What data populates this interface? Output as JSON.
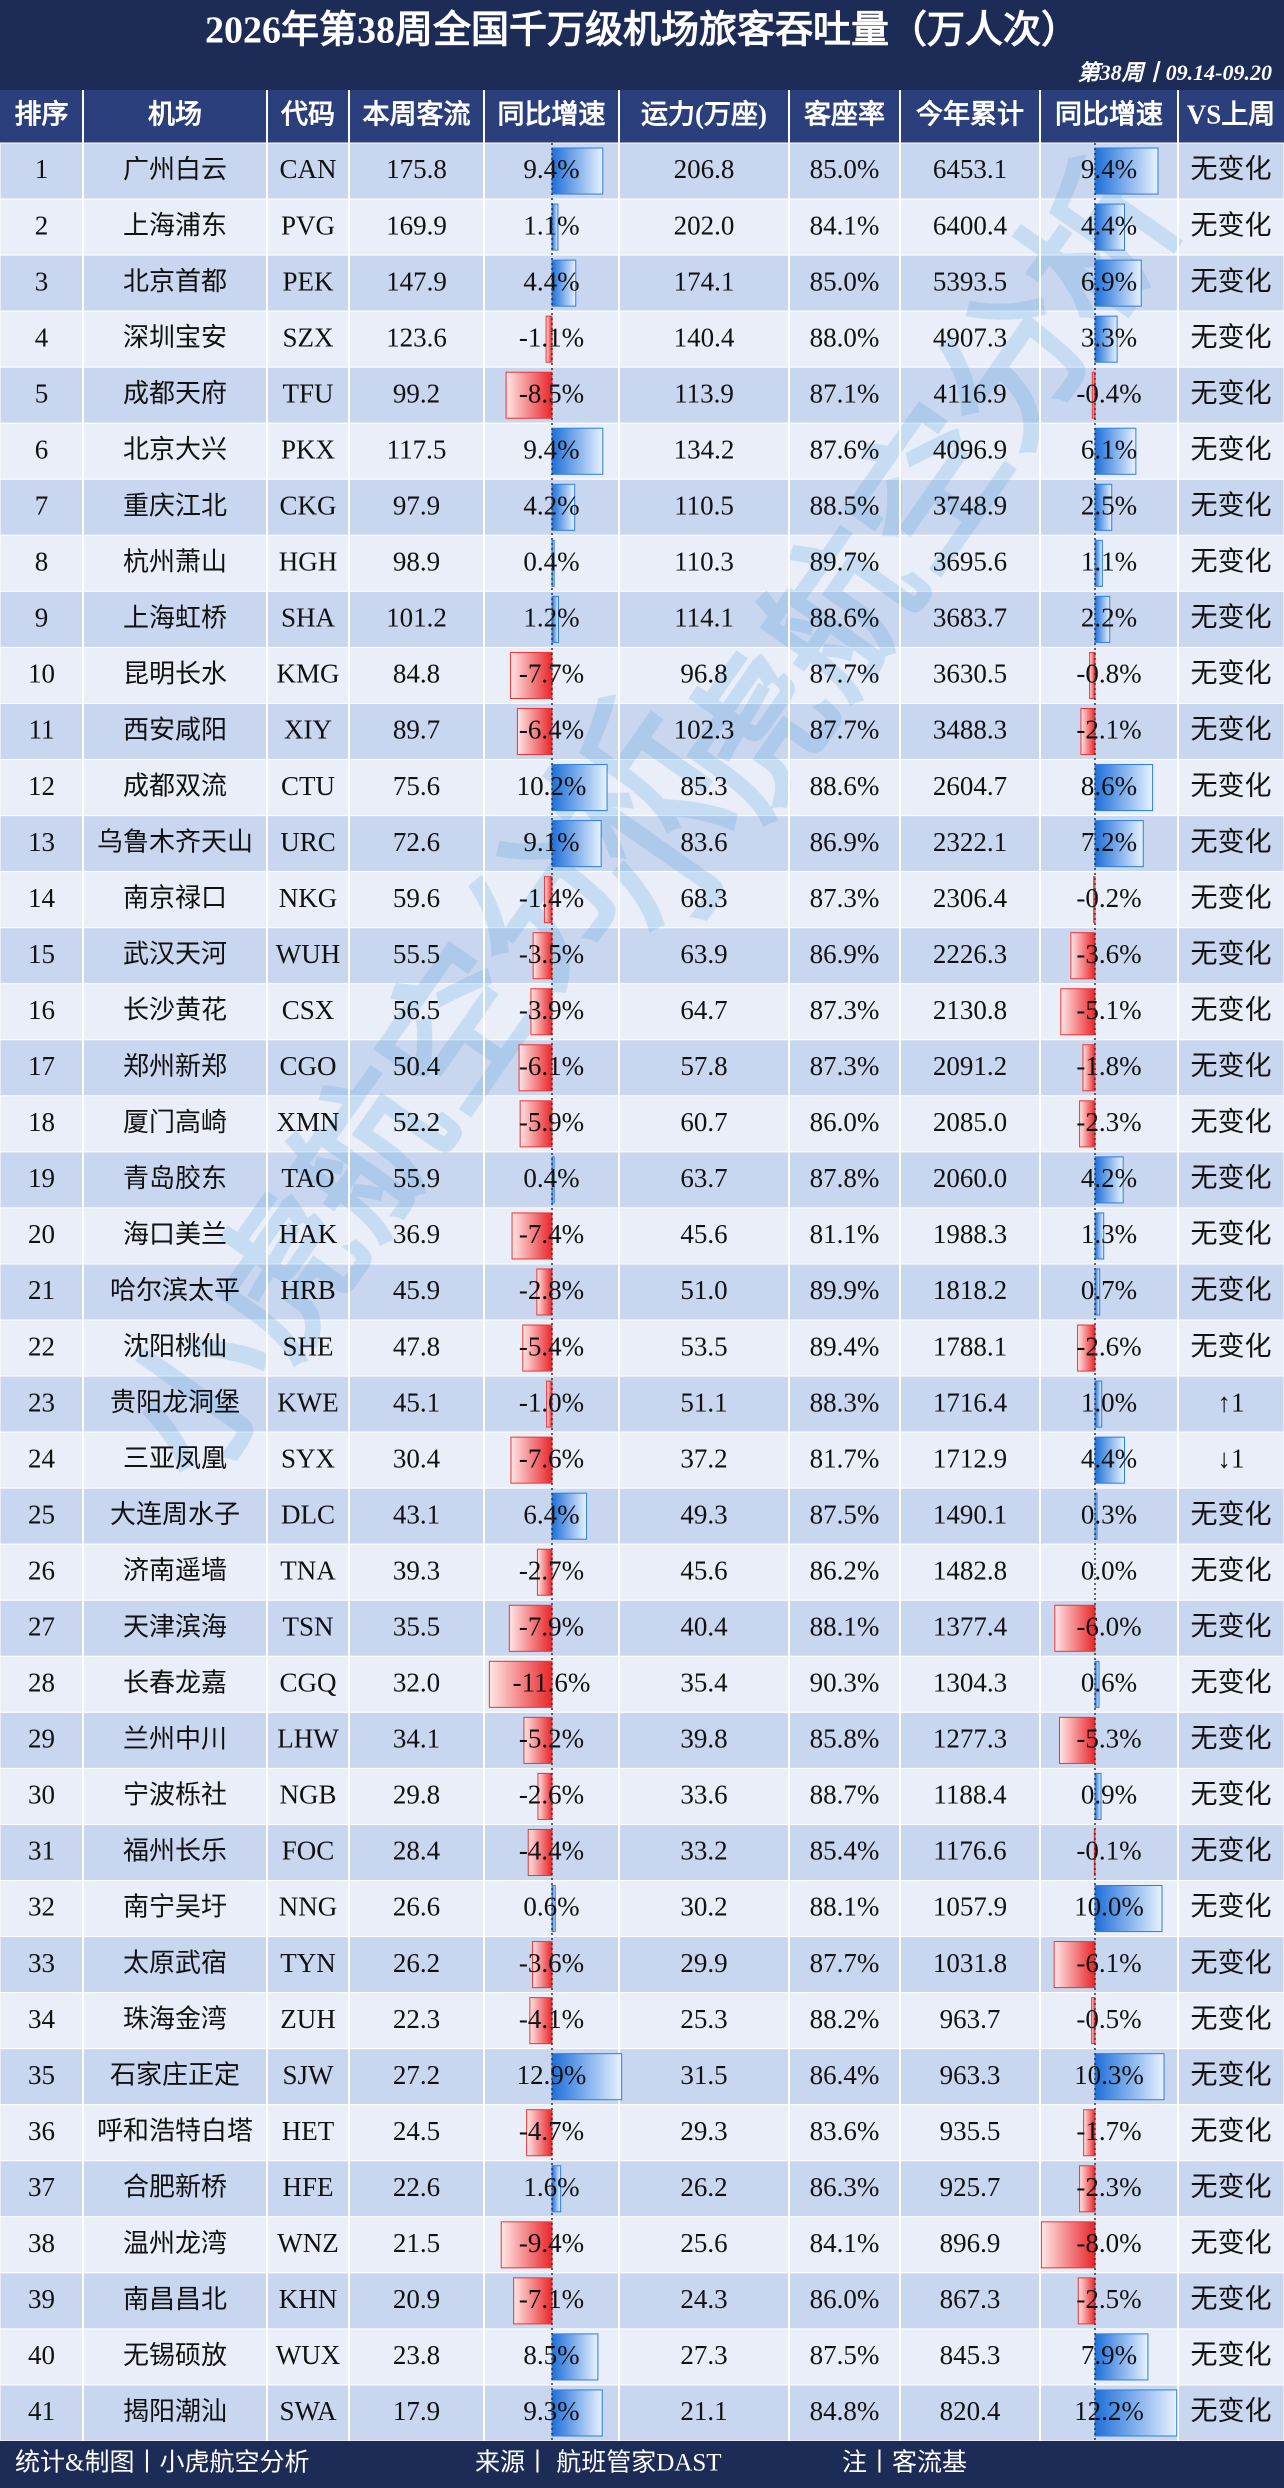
{
  "header": {
    "title": "2026年第38周全国千万级机场旅客吞吐量（万人次）",
    "period": "第38周丨09.14-09.20",
    "watermark": "小虎航空分析"
  },
  "table": {
    "columns": [
      "排序",
      "机场",
      "代码",
      "本周客流",
      "同比增速",
      "运力(万座)",
      "客座率",
      "今年累计",
      "同比增速",
      "VS上周"
    ],
    "rows": [
      [
        "1",
        "广州白云",
        "CAN",
        "175.8",
        "9.4%",
        "206.8",
        "85.0%",
        "6453.1",
        "9.4%",
        "无变化"
      ],
      [
        "2",
        "上海浦东",
        "PVG",
        "169.9",
        "1.1%",
        "202.0",
        "84.1%",
        "6400.4",
        "4.4%",
        "无变化"
      ],
      [
        "3",
        "北京首都",
        "PEK",
        "147.9",
        "4.4%",
        "174.1",
        "85.0%",
        "5393.5",
        "6.9%",
        "无变化"
      ],
      [
        "4",
        "深圳宝安",
        "SZX",
        "123.6",
        "-1.1%",
        "140.4",
        "88.0%",
        "4907.3",
        "3.3%",
        "无变化"
      ],
      [
        "5",
        "成都天府",
        "TFU",
        "99.2",
        "-8.5%",
        "113.9",
        "87.1%",
        "4116.9",
        "-0.4%",
        "无变化"
      ],
      [
        "6",
        "北京大兴",
        "PKX",
        "117.5",
        "9.4%",
        "134.2",
        "87.6%",
        "4096.9",
        "6.1%",
        "无变化"
      ],
      [
        "7",
        "重庆江北",
        "CKG",
        "97.9",
        "4.2%",
        "110.5",
        "88.5%",
        "3748.9",
        "2.5%",
        "无变化"
      ],
      [
        "8",
        "杭州萧山",
        "HGH",
        "98.9",
        "0.4%",
        "110.3",
        "89.7%",
        "3695.6",
        "1.1%",
        "无变化"
      ],
      [
        "9",
        "上海虹桥",
        "SHA",
        "101.2",
        "1.2%",
        "114.1",
        "88.6%",
        "3683.7",
        "2.2%",
        "无变化"
      ],
      [
        "10",
        "昆明长水",
        "KMG",
        "84.8",
        "-7.7%",
        "96.8",
        "87.7%",
        "3630.5",
        "-0.8%",
        "无变化"
      ],
      [
        "11",
        "西安咸阳",
        "XIY",
        "89.7",
        "-6.4%",
        "102.3",
        "87.7%",
        "3488.3",
        "-2.1%",
        "无变化"
      ],
      [
        "12",
        "成都双流",
        "CTU",
        "75.6",
        "10.2%",
        "85.3",
        "88.6%",
        "2604.7",
        "8.6%",
        "无变化"
      ],
      [
        "13",
        "乌鲁木齐天山",
        "URC",
        "72.6",
        "9.1%",
        "83.6",
        "86.9%",
        "2322.1",
        "7.2%",
        "无变化"
      ],
      [
        "14",
        "南京禄口",
        "NKG",
        "59.6",
        "-1.4%",
        "68.3",
        "87.3%",
        "2306.4",
        "-0.2%",
        "无变化"
      ],
      [
        "15",
        "武汉天河",
        "WUH",
        "55.5",
        "-3.5%",
        "63.9",
        "86.9%",
        "2226.3",
        "-3.6%",
        "无变化"
      ],
      [
        "16",
        "长沙黄花",
        "CSX",
        "56.5",
        "-3.9%",
        "64.7",
        "87.3%",
        "2130.8",
        "-5.1%",
        "无变化"
      ],
      [
        "17",
        "郑州新郑",
        "CGO",
        "50.4",
        "-6.1%",
        "57.8",
        "87.3%",
        "2091.2",
        "-1.8%",
        "无变化"
      ],
      [
        "18",
        "厦门高崎",
        "XMN",
        "52.2",
        "-5.9%",
        "60.7",
        "86.0%",
        "2085.0",
        "-2.3%",
        "无变化"
      ],
      [
        "19",
        "青岛胶东",
        "TAO",
        "55.9",
        "0.4%",
        "63.7",
        "87.8%",
        "2060.0",
        "4.2%",
        "无变化"
      ],
      [
        "20",
        "海口美兰",
        "HAK",
        "36.9",
        "-7.4%",
        "45.6",
        "81.1%",
        "1988.3",
        "1.3%",
        "无变化"
      ],
      [
        "21",
        "哈尔滨太平",
        "HRB",
        "45.9",
        "-2.8%",
        "51.0",
        "89.9%",
        "1818.2",
        "0.7%",
        "无变化"
      ],
      [
        "22",
        "沈阳桃仙",
        "SHE",
        "47.8",
        "-5.4%",
        "53.5",
        "89.4%",
        "1788.1",
        "-2.6%",
        "无变化"
      ],
      [
        "23",
        "贵阳龙洞堡",
        "KWE",
        "45.1",
        "-1.0%",
        "51.1",
        "88.3%",
        "1716.4",
        "1.0%",
        "↑1"
      ],
      [
        "24",
        "三亚凤凰",
        "SYX",
        "30.4",
        "-7.6%",
        "37.2",
        "81.7%",
        "1712.9",
        "4.4%",
        "↓1"
      ],
      [
        "25",
        "大连周水子",
        "DLC",
        "43.1",
        "6.4%",
        "49.3",
        "87.5%",
        "1490.1",
        "0.3%",
        "无变化"
      ],
      [
        "26",
        "济南遥墙",
        "TNA",
        "39.3",
        "-2.7%",
        "45.6",
        "86.2%",
        "1482.8",
        "0.0%",
        "无变化"
      ],
      [
        "27",
        "天津滨海",
        "TSN",
        "35.5",
        "-7.9%",
        "40.4",
        "88.1%",
        "1377.4",
        "-6.0%",
        "无变化"
      ],
      [
        "28",
        "长春龙嘉",
        "CGQ",
        "32.0",
        "-11.6%",
        "35.4",
        "90.3%",
        "1304.3",
        "0.6%",
        "无变化"
      ],
      [
        "29",
        "兰州中川",
        "LHW",
        "34.1",
        "-5.2%",
        "39.8",
        "85.8%",
        "1277.3",
        "-5.3%",
        "无变化"
      ],
      [
        "30",
        "宁波栎社",
        "NGB",
        "29.8",
        "-2.6%",
        "33.6",
        "88.7%",
        "1188.4",
        "0.9%",
        "无变化"
      ],
      [
        "31",
        "福州长乐",
        "FOC",
        "28.4",
        "-4.4%",
        "33.2",
        "85.4%",
        "1176.6",
        "-0.1%",
        "无变化"
      ],
      [
        "32",
        "南宁吴圩",
        "NNG",
        "26.6",
        "0.6%",
        "30.2",
        "88.1%",
        "1057.9",
        "10.0%",
        "无变化"
      ],
      [
        "33",
        "太原武宿",
        "TYN",
        "26.2",
        "-3.6%",
        "29.9",
        "87.7%",
        "1031.8",
        "-6.1%",
        "无变化"
      ],
      [
        "34",
        "珠海金湾",
        "ZUH",
        "22.3",
        "-4.1%",
        "25.3",
        "88.2%",
        "963.7",
        "-0.5%",
        "无变化"
      ],
      [
        "35",
        "石家庄正定",
        "SJW",
        "27.2",
        "12.9%",
        "31.5",
        "86.4%",
        "963.3",
        "10.3%",
        "无变化"
      ],
      [
        "36",
        "呼和浩特白塔",
        "HET",
        "24.5",
        "-4.7%",
        "29.3",
        "83.6%",
        "935.5",
        "-1.7%",
        "无变化"
      ],
      [
        "37",
        "合肥新桥",
        "HFE",
        "22.6",
        "1.6%",
        "26.2",
        "86.3%",
        "925.7",
        "-2.3%",
        "无变化"
      ],
      [
        "38",
        "温州龙湾",
        "WNZ",
        "21.5",
        "-9.4%",
        "25.6",
        "84.1%",
        "896.9",
        "-8.0%",
        "无变化"
      ],
      [
        "39",
        "南昌昌北",
        "KHN",
        "20.9",
        "-7.1%",
        "24.3",
        "86.0%",
        "867.3",
        "-2.5%",
        "无变化"
      ],
      [
        "40",
        "无锡硕放",
        "WUX",
        "23.8",
        "8.5%",
        "27.3",
        "87.5%",
        "845.3",
        "7.9%",
        "无变化"
      ],
      [
        "41",
        "揭阳潮汕",
        "SWA",
        "17.9",
        "9.3%",
        "21.1",
        "84.8%",
        "820.4",
        "12.2%",
        "无变化"
      ]
    ]
  },
  "bars": {
    "week_yoy": [
      9.4,
      1.1,
      4.4,
      -1.1,
      -8.5,
      9.4,
      4.2,
      0.4,
      1.2,
      -7.7,
      -6.4,
      10.2,
      9.1,
      -1.4,
      -3.5,
      -3.9,
      -6.1,
      -5.9,
      0.4,
      -7.4,
      -2.8,
      -5.4,
      -1.0,
      -7.6,
      6.4,
      -2.7,
      -7.9,
      -11.6,
      -5.2,
      -2.6,
      -4.4,
      0.6,
      -3.6,
      -4.1,
      12.9,
      -4.7,
      1.6,
      -9.4,
      -7.1,
      8.5,
      9.3
    ],
    "ytd_yoy": [
      9.4,
      4.4,
      6.9,
      3.3,
      -0.4,
      6.1,
      2.5,
      1.1,
      2.2,
      -0.8,
      -2.1,
      8.6,
      7.2,
      -0.2,
      -3.6,
      -5.1,
      -1.8,
      -2.3,
      4.2,
      1.3,
      0.7,
      -2.6,
      1.0,
      4.4,
      0.3,
      0.0,
      -6.0,
      0.6,
      -5.3,
      0.9,
      -0.1,
      10.0,
      -6.1,
      -0.5,
      10.3,
      -1.7,
      -2.3,
      -8.0,
      -2.5,
      7.9,
      12.2
    ]
  },
  "footer": [
    "统计&制图丨小虎航空分析",
    "来源丨 航班管家DAST",
    "注丨客流基"
  ]
}
